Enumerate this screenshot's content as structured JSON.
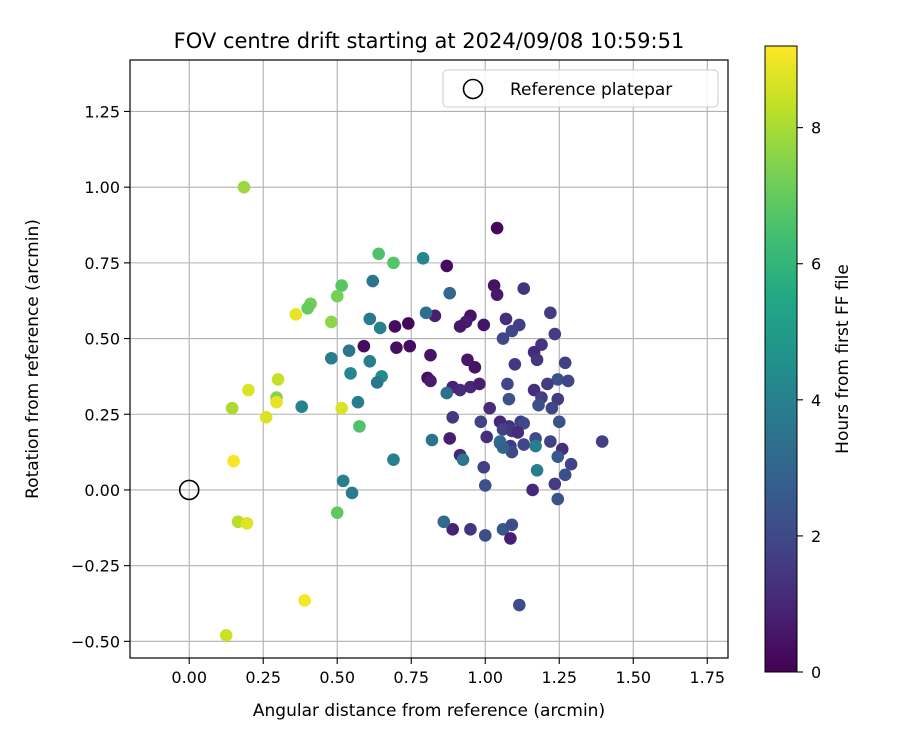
{
  "chart_data": {
    "type": "scatter",
    "title": "FOV centre drift starting at 2024/09/08 10:59:51",
    "xlabel": "Angular distance from reference (arcmin)",
    "ylabel": "Rotation from reference (arcmin)",
    "xlim": [
      -0.2,
      1.82
    ],
    "ylim": [
      -0.555,
      1.42
    ],
    "xticks": [
      0.0,
      0.25,
      0.5,
      0.75,
      1.0,
      1.25,
      1.5,
      1.75
    ],
    "xtick_labels": [
      "0.00",
      "0.25",
      "0.50",
      "0.75",
      "1.00",
      "1.25",
      "1.50",
      "1.75"
    ],
    "yticks": [
      -0.5,
      -0.25,
      0.0,
      0.25,
      0.5,
      0.75,
      1.0,
      1.25
    ],
    "ytick_labels": [
      "−0.50",
      "−0.25",
      "0.00",
      "0.25",
      "0.50",
      "0.75",
      "1.00",
      "1.25"
    ],
    "grid": true,
    "legend": {
      "position": "top-right",
      "entries": [
        "Reference platepar"
      ]
    },
    "reference_point": {
      "x": 0.0,
      "y": 0.0
    },
    "colorbar": {
      "label": "Hours from first FF file",
      "min": 0,
      "max": 9.2,
      "ticks": [
        0,
        2,
        4,
        6,
        8
      ],
      "tick_labels": [
        "0",
        "2",
        "4",
        "6",
        "8"
      ],
      "colormap": "viridis"
    },
    "series": [
      {
        "values": [
          {
            "x": 1.04,
            "y": 0.865,
            "c": 0.2
          },
          {
            "x": 0.87,
            "y": 0.74,
            "c": 0.3
          },
          {
            "x": 1.03,
            "y": 0.675,
            "c": 0.5
          },
          {
            "x": 1.04,
            "y": 0.645,
            "c": 0.6
          },
          {
            "x": 1.13,
            "y": 0.665,
            "c": 1.4
          },
          {
            "x": 1.22,
            "y": 0.585,
            "c": 1.6
          },
          {
            "x": 0.95,
            "y": 0.575,
            "c": 0.5
          },
          {
            "x": 0.83,
            "y": 0.575,
            "c": 0.8
          },
          {
            "x": 0.935,
            "y": 0.555,
            "c": 0.7
          },
          {
            "x": 0.915,
            "y": 0.54,
            "c": 0.6
          },
          {
            "x": 0.995,
            "y": 0.545,
            "c": 0.5
          },
          {
            "x": 0.695,
            "y": 0.54,
            "c": 0.3
          },
          {
            "x": 0.74,
            "y": 0.55,
            "c": 0.2
          },
          {
            "x": 0.59,
            "y": 0.475,
            "c": 0.3
          },
          {
            "x": 0.7,
            "y": 0.47,
            "c": 0.4
          },
          {
            "x": 0.745,
            "y": 0.475,
            "c": 0.3
          },
          {
            "x": 0.815,
            "y": 0.445,
            "c": 0.5
          },
          {
            "x": 1.07,
            "y": 0.565,
            "c": 1.2
          },
          {
            "x": 1.115,
            "y": 0.545,
            "c": 1.7
          },
          {
            "x": 1.09,
            "y": 0.525,
            "c": 1.9
          },
          {
            "x": 1.06,
            "y": 0.5,
            "c": 1.9
          },
          {
            "x": 1.235,
            "y": 0.515,
            "c": 1.6
          },
          {
            "x": 1.19,
            "y": 0.48,
            "c": 1.4
          },
          {
            "x": 1.165,
            "y": 0.455,
            "c": 1.1
          },
          {
            "x": 1.175,
            "y": 0.43,
            "c": 1.4
          },
          {
            "x": 1.27,
            "y": 0.42,
            "c": 1.7
          },
          {
            "x": 1.1,
            "y": 0.415,
            "c": 1.5
          },
          {
            "x": 0.94,
            "y": 0.43,
            "c": 0.6
          },
          {
            "x": 0.965,
            "y": 0.405,
            "c": 0.5
          },
          {
            "x": 0.805,
            "y": 0.37,
            "c": 0.4
          },
          {
            "x": 0.815,
            "y": 0.36,
            "c": 0.7
          },
          {
            "x": 0.89,
            "y": 0.34,
            "c": 0.9
          },
          {
            "x": 0.915,
            "y": 0.33,
            "c": 1.1
          },
          {
            "x": 0.95,
            "y": 0.34,
            "c": 1.0
          },
          {
            "x": 0.98,
            "y": 0.35,
            "c": 0.8
          },
          {
            "x": 1.075,
            "y": 0.35,
            "c": 1.9
          },
          {
            "x": 1.245,
            "y": 0.365,
            "c": 2.4
          },
          {
            "x": 1.28,
            "y": 0.36,
            "c": 1.9
          },
          {
            "x": 1.21,
            "y": 0.35,
            "c": 1.6
          },
          {
            "x": 1.165,
            "y": 0.33,
            "c": 1.2
          },
          {
            "x": 1.19,
            "y": 0.305,
            "c": 1.7
          },
          {
            "x": 1.245,
            "y": 0.3,
            "c": 1.6
          },
          {
            "x": 1.08,
            "y": 0.3,
            "c": 2.3
          },
          {
            "x": 1.225,
            "y": 0.27,
            "c": 1.9
          },
          {
            "x": 1.18,
            "y": 0.28,
            "c": 2.2
          },
          {
            "x": 1.015,
            "y": 0.27,
            "c": 1.2
          },
          {
            "x": 0.89,
            "y": 0.24,
            "c": 1.5
          },
          {
            "x": 0.985,
            "y": 0.225,
            "c": 1.8
          },
          {
            "x": 1.05,
            "y": 0.225,
            "c": 1.0
          },
          {
            "x": 1.08,
            "y": 0.21,
            "c": 1.3
          },
          {
            "x": 1.12,
            "y": 0.225,
            "c": 1.6
          },
          {
            "x": 1.13,
            "y": 0.22,
            "c": 2.0
          },
          {
            "x": 1.25,
            "y": 0.225,
            "c": 2.3
          },
          {
            "x": 1.06,
            "y": 0.2,
            "c": 1.8
          },
          {
            "x": 1.09,
            "y": 0.195,
            "c": 1.5
          },
          {
            "x": 1.11,
            "y": 0.19,
            "c": 1.1
          },
          {
            "x": 1.005,
            "y": 0.175,
            "c": 1.2
          },
          {
            "x": 0.88,
            "y": 0.17,
            "c": 0.8
          },
          {
            "x": 1.17,
            "y": 0.17,
            "c": 2.1
          },
          {
            "x": 1.22,
            "y": 0.16,
            "c": 1.8
          },
          {
            "x": 1.395,
            "y": 0.16,
            "c": 1.7
          },
          {
            "x": 1.05,
            "y": 0.155,
            "c": 2.2
          },
          {
            "x": 1.13,
            "y": 0.15,
            "c": 1.9
          },
          {
            "x": 1.085,
            "y": 0.145,
            "c": 1.5
          },
          {
            "x": 1.26,
            "y": 0.135,
            "c": 1.2
          },
          {
            "x": 1.09,
            "y": 0.125,
            "c": 2.0
          },
          {
            "x": 0.915,
            "y": 0.115,
            "c": 1.0
          },
          {
            "x": 1.245,
            "y": 0.11,
            "c": 2.5
          },
          {
            "x": 0.995,
            "y": 0.075,
            "c": 1.7
          },
          {
            "x": 1.29,
            "y": 0.085,
            "c": 1.8
          },
          {
            "x": 1.27,
            "y": 0.05,
            "c": 2.2
          },
          {
            "x": 1.235,
            "y": 0.02,
            "c": 1.6
          },
          {
            "x": 1.0,
            "y": 0.015,
            "c": 2.3
          },
          {
            "x": 1.16,
            "y": 0.0,
            "c": 1.0
          },
          {
            "x": 1.245,
            "y": -0.03,
            "c": 2.3
          },
          {
            "x": 0.89,
            "y": -0.13,
            "c": 0.9
          },
          {
            "x": 0.95,
            "y": -0.13,
            "c": 1.4
          },
          {
            "x": 1.0,
            "y": -0.15,
            "c": 2.2
          },
          {
            "x": 1.06,
            "y": -0.13,
            "c": 2.5
          },
          {
            "x": 1.09,
            "y": -0.115,
            "c": 2.1
          },
          {
            "x": 1.085,
            "y": -0.16,
            "c": 0.8
          },
          {
            "x": 1.115,
            "y": -0.38,
            "c": 2.1
          },
          {
            "x": 0.79,
            "y": 0.765,
            "c": 4.2
          },
          {
            "x": 0.8,
            "y": 0.585,
            "c": 3.3
          },
          {
            "x": 0.88,
            "y": 0.65,
            "c": 3.1
          },
          {
            "x": 0.62,
            "y": 0.69,
            "c": 3.6
          },
          {
            "x": 0.61,
            "y": 0.565,
            "c": 3.7
          },
          {
            "x": 0.645,
            "y": 0.535,
            "c": 4.1
          },
          {
            "x": 0.54,
            "y": 0.46,
            "c": 3.6
          },
          {
            "x": 0.48,
            "y": 0.435,
            "c": 3.8
          },
          {
            "x": 0.61,
            "y": 0.425,
            "c": 3.9
          },
          {
            "x": 0.545,
            "y": 0.385,
            "c": 4.2
          },
          {
            "x": 0.65,
            "y": 0.375,
            "c": 4.4
          },
          {
            "x": 0.635,
            "y": 0.355,
            "c": 3.6
          },
          {
            "x": 0.87,
            "y": 0.32,
            "c": 3.4
          },
          {
            "x": 0.57,
            "y": 0.29,
            "c": 3.9
          },
          {
            "x": 0.38,
            "y": 0.275,
            "c": 4.1
          },
          {
            "x": 0.82,
            "y": 0.165,
            "c": 3.5
          },
          {
            "x": 1.05,
            "y": 0.16,
            "c": 3.2
          },
          {
            "x": 1.06,
            "y": 0.14,
            "c": 2.9
          },
          {
            "x": 1.17,
            "y": 0.145,
            "c": 3.9
          },
          {
            "x": 0.925,
            "y": 0.1,
            "c": 3.6
          },
          {
            "x": 0.69,
            "y": 0.1,
            "c": 4.0
          },
          {
            "x": 1.175,
            "y": 0.065,
            "c": 3.8
          },
          {
            "x": 0.52,
            "y": 0.03,
            "c": 4.0
          },
          {
            "x": 0.55,
            "y": -0.01,
            "c": 3.8
          },
          {
            "x": 0.86,
            "y": -0.105,
            "c": 3.2
          },
          {
            "x": 0.64,
            "y": 0.78,
            "c": 6.6
          },
          {
            "x": 0.69,
            "y": 0.75,
            "c": 6.7
          },
          {
            "x": 0.515,
            "y": 0.675,
            "c": 6.8
          },
          {
            "x": 0.5,
            "y": 0.64,
            "c": 7.3
          },
          {
            "x": 0.41,
            "y": 0.615,
            "c": 7.2
          },
          {
            "x": 0.4,
            "y": 0.6,
            "c": 7.0
          },
          {
            "x": 0.36,
            "y": 0.58,
            "c": 8.9
          },
          {
            "x": 0.48,
            "y": 0.555,
            "c": 7.6
          },
          {
            "x": 0.575,
            "y": 0.21,
            "c": 6.6
          },
          {
            "x": 0.5,
            "y": -0.075,
            "c": 6.9
          },
          {
            "x": 0.185,
            "y": 1.0,
            "c": 7.8
          },
          {
            "x": 0.3,
            "y": 0.365,
            "c": 8.4
          },
          {
            "x": 0.2,
            "y": 0.33,
            "c": 8.7
          },
          {
            "x": 0.295,
            "y": 0.305,
            "c": 7.5
          },
          {
            "x": 0.295,
            "y": 0.29,
            "c": 8.9
          },
          {
            "x": 0.145,
            "y": 0.27,
            "c": 8.0
          },
          {
            "x": 0.515,
            "y": 0.27,
            "c": 8.7
          },
          {
            "x": 0.26,
            "y": 0.24,
            "c": 8.7
          },
          {
            "x": 0.15,
            "y": 0.095,
            "c": 9.1
          },
          {
            "x": 0.165,
            "y": -0.105,
            "c": 8.2
          },
          {
            "x": 0.195,
            "y": -0.11,
            "c": 8.8
          },
          {
            "x": 0.39,
            "y": -0.365,
            "c": 9.1
          },
          {
            "x": 0.125,
            "y": -0.48,
            "c": 8.5
          }
        ]
      }
    ]
  }
}
